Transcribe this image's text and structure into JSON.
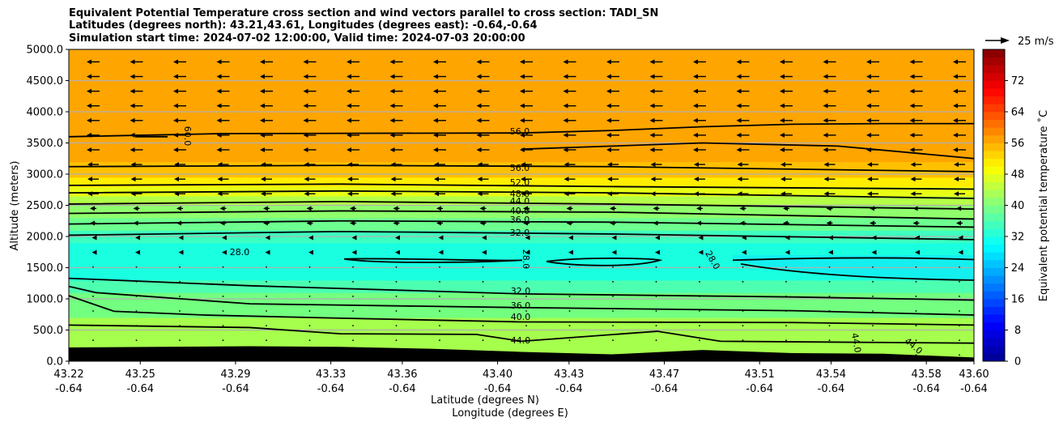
{
  "chart_data": {
    "type": "heatmap",
    "title_lines": [
      "Equivalent Potential Temperature cross section and wind vectors parallel to cross section: TADI_SN",
      "Latitudes (degrees north): 43.21,43.61, Longitudes (degrees east): -0.64,-0.64",
      "Simulation start time: 2024-07-02 12:00:00, Valid time: 2024-07-03 20:00:00"
    ],
    "ylabel": "Altitude (meters)",
    "xlabel": "Latitude (degrees N)",
    "xlabel2": "Longitude (degrees E)",
    "colorbar_label": "Equivalent potential temperature ˚C",
    "quiver_key": "25 m/s",
    "ylim": [
      0,
      5000
    ],
    "y_ticks": [
      "0.0",
      "500.0",
      "1000.0",
      "1500.0",
      "2000.0",
      "2500.0",
      "3000.0",
      "3500.0",
      "4000.0",
      "4500.0",
      "5000.0"
    ],
    "x_ticks_lat": [
      "43.22",
      "43.25",
      "43.29",
      "43.33",
      "43.36",
      "43.40",
      "43.43",
      "43.47",
      "43.51",
      "43.54",
      "43.58",
      "43.60"
    ],
    "x_ticks_lon": [
      "-0.64",
      "-0.64",
      "-0.64",
      "-0.64",
      "-0.64",
      "-0.64",
      "-0.64",
      "-0.64",
      "-0.64",
      "-0.64",
      "-0.64",
      "-0.64"
    ],
    "colorbar_range": [
      0,
      80
    ],
    "colorbar_ticks": [
      "0",
      "8",
      "16",
      "24",
      "32",
      "40",
      "48",
      "56",
      "64",
      "72"
    ],
    "contour_labels": [
      "56.0",
      "56.0",
      "52.0",
      "48.0",
      "44.0",
      "40.0",
      "36.0",
      "32.0",
      "28.0",
      "28.0",
      "28.0",
      "32.0",
      "36.0",
      "40.0",
      "44.0",
      "60.0",
      "44.0",
      "44.0"
    ],
    "layers": [
      {
        "from": 0,
        "to": 300,
        "value": 44,
        "color": "#a6ff4d"
      },
      {
        "from": 300,
        "to": 700,
        "value": 44,
        "color": "#a6ff4d"
      },
      {
        "from": 700,
        "to": 1100,
        "value": 38,
        "color": "#73ff80"
      },
      {
        "from": 1100,
        "to": 1300,
        "value": 33,
        "color": "#4dffb0"
      },
      {
        "from": 1300,
        "to": 1900,
        "value": 28,
        "color": "#1affe0"
      },
      {
        "from": 1900,
        "to": 2100,
        "value": 32,
        "color": "#3dffc0"
      },
      {
        "from": 2100,
        "to": 2300,
        "value": 36,
        "color": "#6dff8f"
      },
      {
        "from": 2300,
        "to": 2500,
        "value": 40,
        "color": "#8fff6d"
      },
      {
        "from": 2500,
        "to": 2650,
        "value": 44,
        "color": "#b4ff48"
      },
      {
        "from": 2650,
        "to": 2800,
        "value": 48,
        "color": "#e8ff15"
      },
      {
        "from": 2800,
        "to": 2950,
        "value": 52,
        "color": "#ffee00"
      },
      {
        "from": 2950,
        "to": 3200,
        "value": 56,
        "color": "#ffc000"
      },
      {
        "from": 3200,
        "to": 5000,
        "value": 58,
        "color": "#ffa500"
      }
    ],
    "wind": "westward (leftward) vectors parallel to section, strongest above 2000 m, near-zero below 1700 m"
  }
}
